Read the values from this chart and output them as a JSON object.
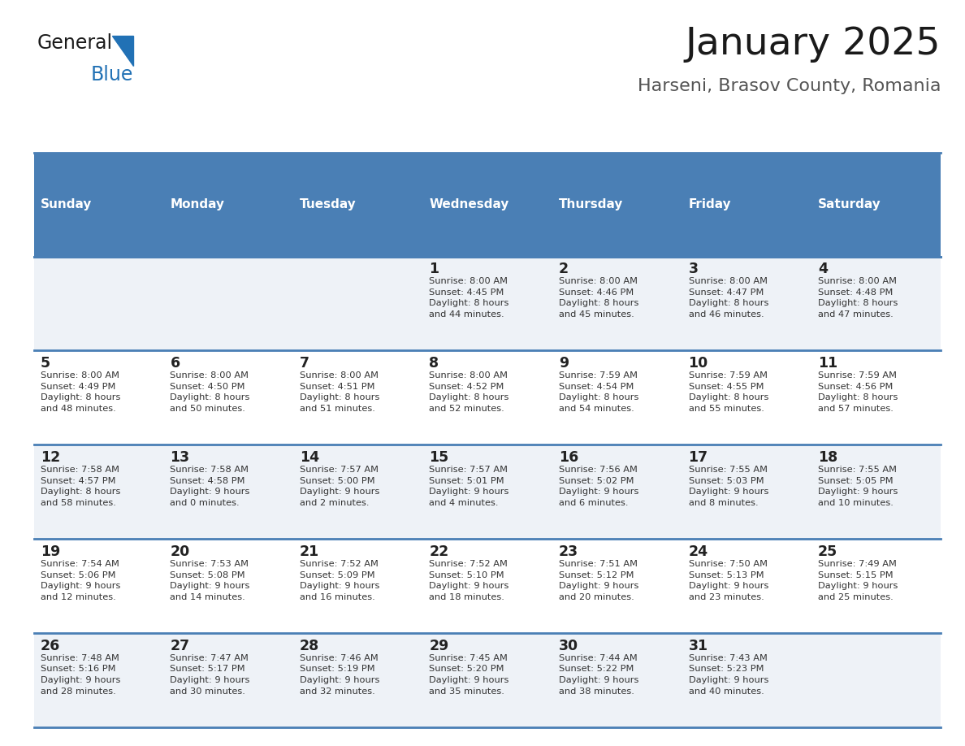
{
  "title": "January 2025",
  "subtitle": "Harseni, Brasov County, Romania",
  "header_bg": "#4a7fb5",
  "header_text": "#ffffff",
  "row_bg_odd": "#eef2f7",
  "row_bg_even": "#ffffff",
  "separator_color": "#4a7fb5",
  "day_headers": [
    "Sunday",
    "Monday",
    "Tuesday",
    "Wednesday",
    "Thursday",
    "Friday",
    "Saturday"
  ],
  "cell_text_color": "#333333",
  "day_num_color": "#222222",
  "calendar": [
    [
      "",
      "",
      "",
      "1\nSunrise: 8:00 AM\nSunset: 4:45 PM\nDaylight: 8 hours\nand 44 minutes.",
      "2\nSunrise: 8:00 AM\nSunset: 4:46 PM\nDaylight: 8 hours\nand 45 minutes.",
      "3\nSunrise: 8:00 AM\nSunset: 4:47 PM\nDaylight: 8 hours\nand 46 minutes.",
      "4\nSunrise: 8:00 AM\nSunset: 4:48 PM\nDaylight: 8 hours\nand 47 minutes."
    ],
    [
      "5\nSunrise: 8:00 AM\nSunset: 4:49 PM\nDaylight: 8 hours\nand 48 minutes.",
      "6\nSunrise: 8:00 AM\nSunset: 4:50 PM\nDaylight: 8 hours\nand 50 minutes.",
      "7\nSunrise: 8:00 AM\nSunset: 4:51 PM\nDaylight: 8 hours\nand 51 minutes.",
      "8\nSunrise: 8:00 AM\nSunset: 4:52 PM\nDaylight: 8 hours\nand 52 minutes.",
      "9\nSunrise: 7:59 AM\nSunset: 4:54 PM\nDaylight: 8 hours\nand 54 minutes.",
      "10\nSunrise: 7:59 AM\nSunset: 4:55 PM\nDaylight: 8 hours\nand 55 minutes.",
      "11\nSunrise: 7:59 AM\nSunset: 4:56 PM\nDaylight: 8 hours\nand 57 minutes."
    ],
    [
      "12\nSunrise: 7:58 AM\nSunset: 4:57 PM\nDaylight: 8 hours\nand 58 minutes.",
      "13\nSunrise: 7:58 AM\nSunset: 4:58 PM\nDaylight: 9 hours\nand 0 minutes.",
      "14\nSunrise: 7:57 AM\nSunset: 5:00 PM\nDaylight: 9 hours\nand 2 minutes.",
      "15\nSunrise: 7:57 AM\nSunset: 5:01 PM\nDaylight: 9 hours\nand 4 minutes.",
      "16\nSunrise: 7:56 AM\nSunset: 5:02 PM\nDaylight: 9 hours\nand 6 minutes.",
      "17\nSunrise: 7:55 AM\nSunset: 5:03 PM\nDaylight: 9 hours\nand 8 minutes.",
      "18\nSunrise: 7:55 AM\nSunset: 5:05 PM\nDaylight: 9 hours\nand 10 minutes."
    ],
    [
      "19\nSunrise: 7:54 AM\nSunset: 5:06 PM\nDaylight: 9 hours\nand 12 minutes.",
      "20\nSunrise: 7:53 AM\nSunset: 5:08 PM\nDaylight: 9 hours\nand 14 minutes.",
      "21\nSunrise: 7:52 AM\nSunset: 5:09 PM\nDaylight: 9 hours\nand 16 minutes.",
      "22\nSunrise: 7:52 AM\nSunset: 5:10 PM\nDaylight: 9 hours\nand 18 minutes.",
      "23\nSunrise: 7:51 AM\nSunset: 5:12 PM\nDaylight: 9 hours\nand 20 minutes.",
      "24\nSunrise: 7:50 AM\nSunset: 5:13 PM\nDaylight: 9 hours\nand 23 minutes.",
      "25\nSunrise: 7:49 AM\nSunset: 5:15 PM\nDaylight: 9 hours\nand 25 minutes."
    ],
    [
      "26\nSunrise: 7:48 AM\nSunset: 5:16 PM\nDaylight: 9 hours\nand 28 minutes.",
      "27\nSunrise: 7:47 AM\nSunset: 5:17 PM\nDaylight: 9 hours\nand 30 minutes.",
      "28\nSunrise: 7:46 AM\nSunset: 5:19 PM\nDaylight: 9 hours\nand 32 minutes.",
      "29\nSunrise: 7:45 AM\nSunset: 5:20 PM\nDaylight: 9 hours\nand 35 minutes.",
      "30\nSunrise: 7:44 AM\nSunset: 5:22 PM\nDaylight: 9 hours\nand 38 minutes.",
      "31\nSunrise: 7:43 AM\nSunset: 5:23 PM\nDaylight: 9 hours\nand 40 minutes.",
      ""
    ]
  ],
  "logo_triangle_color": "#2171b5",
  "fig_width": 11.88,
  "fig_height": 9.18,
  "dpi": 100
}
